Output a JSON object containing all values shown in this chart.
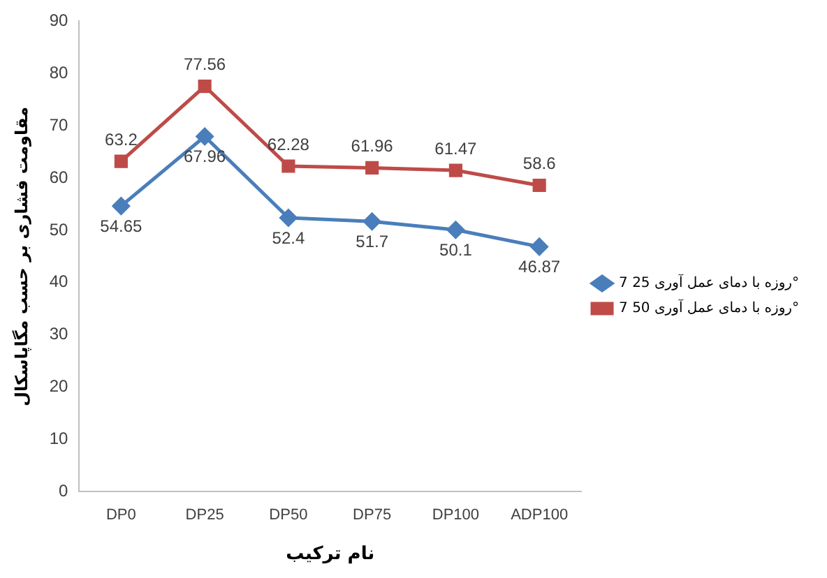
{
  "chart_data": {
    "type": "line",
    "xlabel": "نام ترکیب",
    "ylabel": "مقاومت فشاری بر حسب مگاپاسکال",
    "categories": [
      "DP0",
      "DP25",
      "DP50",
      "DP75",
      "DP100",
      "ADP100"
    ],
    "series": [
      {
        "name": "7 روزه با دمای عمل آوری 25°",
        "color": "#4a7ebb",
        "marker": "diamond",
        "values": [
          54.65,
          67.96,
          52.4,
          51.7,
          50.1,
          46.87
        ]
      },
      {
        "name": "7 روزه با دمای عمل آوری 50°",
        "color": "#be4b48",
        "marker": "square",
        "values": [
          63.2,
          77.56,
          62.28,
          61.96,
          61.47,
          58.6
        ]
      }
    ],
    "ylim": [
      0,
      90
    ],
    "yticks": [
      0,
      10,
      20,
      30,
      40,
      50,
      60,
      70,
      80,
      90
    ],
    "grid": false,
    "legend": "right",
    "data_labels": true,
    "line_style": "solid"
  }
}
